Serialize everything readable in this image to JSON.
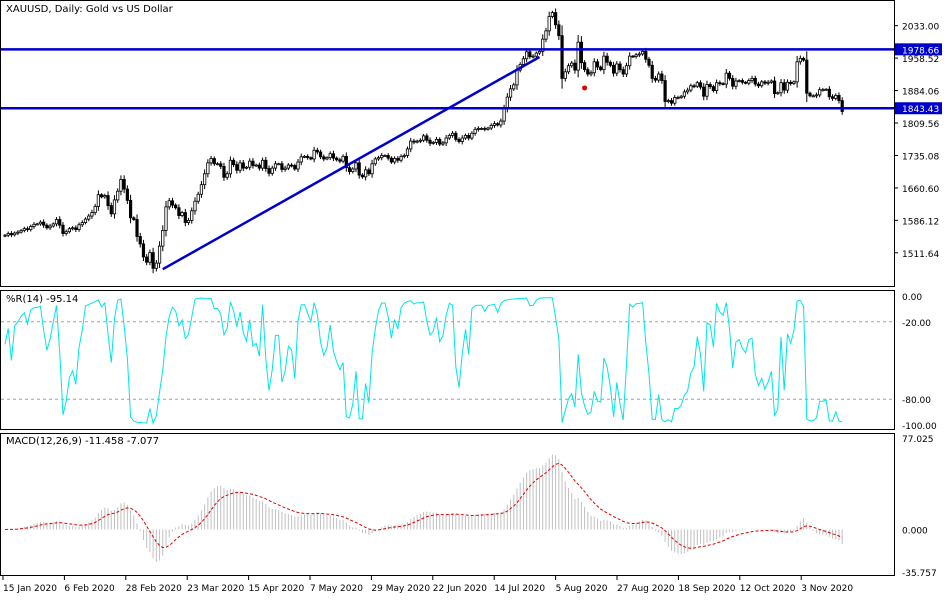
{
  "chart_data": [
    {
      "type": "candlestick",
      "title": "XAUUSD, Daily: Gold vs US Dollar",
      "symbol": "XAUUSD",
      "timeframe": "Daily",
      "ylim": [
        1440,
        2085
      ],
      "y_ticks": [
        "2033.00",
        "1958.52",
        "1884.06",
        "1809.56",
        "1735.08",
        "1660.60",
        "1586.12",
        "1511.64"
      ],
      "horizontal_levels": [
        {
          "value": 1978.66,
          "label": "1978.66",
          "color": "#0000cc"
        },
        {
          "value": 1843.43,
          "label": "1843.43",
          "color": "#0000cc"
        }
      ],
      "trendline": {
        "from": {
          "date": "2020-03-20",
          "price": 1474
        },
        "to": {
          "date": "2020-09-01",
          "price": 1961
        },
        "color": "#0000cc"
      },
      "marker": {
        "date": "2020-09-21",
        "price": 1890,
        "color": "#e00000"
      },
      "candle_up_color": "#000000",
      "candle_down_color": "#000000",
      "closes": [
        1552,
        1556,
        1553,
        1557,
        1559,
        1563,
        1567,
        1565,
        1572,
        1577,
        1578,
        1582,
        1575,
        1569,
        1573,
        1578,
        1588,
        1575,
        1556,
        1560,
        1567,
        1569,
        1565,
        1576,
        1581,
        1589,
        1596,
        1604,
        1618,
        1645,
        1640,
        1643,
        1620,
        1601,
        1633,
        1653,
        1680,
        1658,
        1632,
        1592,
        1588,
        1549,
        1532,
        1502,
        1490,
        1512,
        1476,
        1488,
        1527,
        1563,
        1617,
        1631,
        1621,
        1615,
        1597,
        1604,
        1581,
        1586,
        1608,
        1630,
        1646,
        1668,
        1693,
        1718,
        1728,
        1716,
        1716,
        1710,
        1685,
        1693,
        1724,
        1714,
        1701,
        1718,
        1706,
        1708,
        1722,
        1712,
        1713,
        1706,
        1724,
        1705,
        1694,
        1706,
        1716,
        1716,
        1703,
        1706,
        1713,
        1712,
        1704,
        1720,
        1732,
        1733,
        1730,
        1727,
        1747,
        1743,
        1732,
        1727,
        1730,
        1739,
        1729,
        1725,
        1722,
        1733,
        1707,
        1698,
        1704,
        1718,
        1690,
        1686,
        1702,
        1693,
        1716,
        1727,
        1730,
        1735,
        1735,
        1729,
        1720,
        1728,
        1724,
        1733,
        1735,
        1750,
        1768,
        1766,
        1768,
        1770,
        1780,
        1770,
        1763,
        1765,
        1772,
        1761,
        1764,
        1775,
        1781,
        1786,
        1772,
        1767,
        1775,
        1781,
        1775,
        1786,
        1795,
        1797,
        1797,
        1795,
        1798,
        1804,
        1808,
        1805,
        1814,
        1843,
        1869,
        1888,
        1897,
        1931,
        1944,
        1957,
        1973,
        1962,
        1963,
        1970,
        1974,
        2002,
        2021,
        2054,
        2063,
        2035,
        2010,
        1912,
        1927,
        1941,
        1947,
        1931,
        1995,
        1948,
        1932,
        1922,
        1925,
        1950,
        1938,
        1932,
        1963,
        1949,
        1942,
        1924,
        1945,
        1932,
        1922,
        1941,
        1963,
        1962,
        1966,
        1968,
        1974,
        1956,
        1942,
        1912,
        1908,
        1922,
        1907,
        1859,
        1861,
        1855,
        1868,
        1868,
        1871,
        1881,
        1885,
        1895,
        1894,
        1902,
        1892,
        1871,
        1898,
        1893,
        1884,
        1902,
        1900,
        1899,
        1924,
        1912,
        1894,
        1906,
        1907,
        1903,
        1901,
        1907,
        1912,
        1899,
        1895,
        1904,
        1901,
        1903,
        1906,
        1877,
        1879,
        1902,
        1885,
        1903,
        1900,
        1904,
        1950,
        1958,
        1954,
        1878,
        1872,
        1872,
        1874,
        1886,
        1886,
        1887,
        1870,
        1866,
        1873,
        1861,
        1836
      ],
      "x_tick_labels": [
        "15 Jan 2020",
        "6 Feb 2020",
        "28 Feb 2020",
        "23 Mar 2020",
        "15 Apr 2020",
        "7 May 2020",
        "29 May 2020",
        "22 Jun 2020",
        "14 Jul 2020",
        "5 Aug 2020",
        "27 Aug 2020",
        "18 Sep 2020",
        "12 Oct 2020",
        "3 Nov 2020"
      ]
    },
    {
      "type": "line",
      "title": "%R(14) -95.14",
      "indicator": "Williams %R",
      "period": 14,
      "current_value": -95.14,
      "ylim": [
        -100,
        0
      ],
      "y_ticks": [
        "0.00",
        "-20.00",
        "-80.00",
        "-100.00"
      ],
      "levels": [
        -20,
        -80
      ],
      "color": "#00e5e5"
    },
    {
      "type": "bar+line",
      "title": "MACD(12,26,9) -11.458 -7.077",
      "indicator": "MACD",
      "params": [
        12,
        26,
        9
      ],
      "macd_value": -11.458,
      "signal_value": -7.077,
      "ylim": [
        -35.757,
        77.025
      ],
      "y_ticks": [
        "77.025",
        "0.000",
        "-35.757"
      ],
      "histogram_color": "#c0c0c0",
      "signal_color": "#dd0000"
    }
  ]
}
